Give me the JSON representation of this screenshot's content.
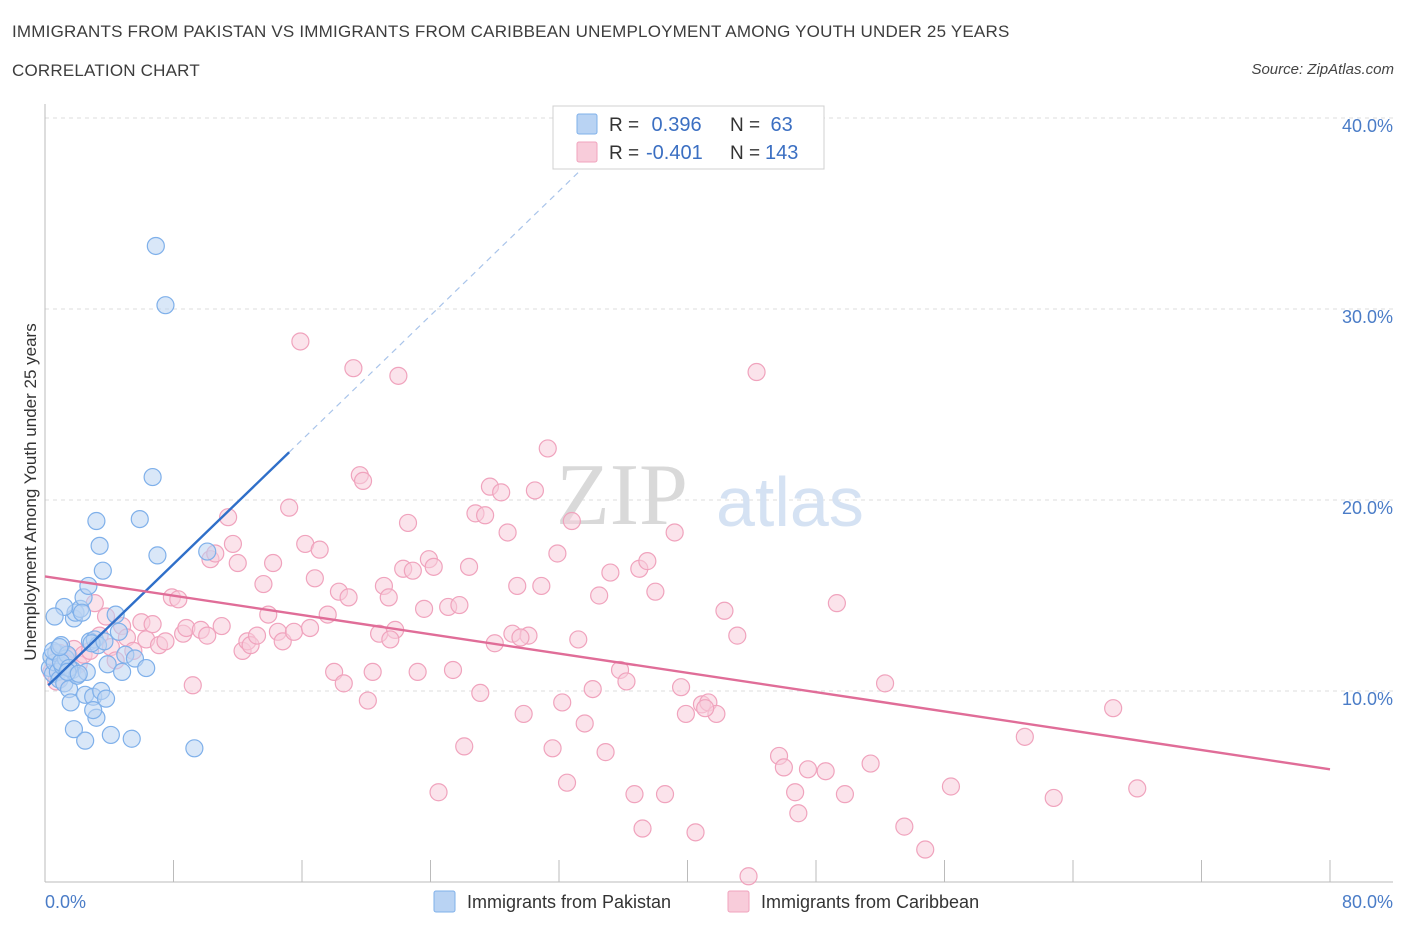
{
  "chart_data": {
    "type": "scatter",
    "title": "IMMIGRANTS FROM PAKISTAN VS IMMIGRANTS FROM CARIBBEAN UNEMPLOYMENT AMONG YOUTH UNDER 25 YEARS",
    "subtitle": "CORRELATION CHART",
    "source": "Source: ZipAtlas.com",
    "xlabel": "",
    "ylabel": "Unemployment Among Youth under 25 years",
    "xlim": [
      0,
      80
    ],
    "ylim": [
      0,
      40
    ],
    "x_tick_labels": [
      "0.0%",
      "80.0%"
    ],
    "y_ticks": [
      {
        "value": 10,
        "label": "10.0%"
      },
      {
        "value": 20,
        "label": "20.0%"
      },
      {
        "value": 30,
        "label": "30.0%"
      },
      {
        "value": 40,
        "label": "40.0%"
      }
    ],
    "watermark": {
      "zip": "ZIP",
      "atlas": "atlas"
    },
    "legend": {
      "rows": [
        {
          "r_label": "R = ",
          "r_value": " 0.396",
          "n_label": "N = ",
          "n_value": " 63"
        },
        {
          "r_label": "R = ",
          "r_value": "-0.401",
          "n_label": "N = ",
          "n_value": "143"
        }
      ]
    },
    "series": [
      {
        "name": "Immigrants from Pakistan",
        "color": "#7fb0ea",
        "fill": "#b9d3f3",
        "trend_color": "#2f6fc9",
        "trend": {
          "x0": 0.2,
          "y0": 10.3,
          "x1": 15.2,
          "y1": 22.5,
          "dash_x1": 34.0,
          "dash_y1": 37.8
        },
        "points": [
          [
            0.3,
            11.2
          ],
          [
            0.4,
            11.8
          ],
          [
            0.5,
            10.9
          ],
          [
            0.6,
            11.5
          ],
          [
            0.7,
            12.0
          ],
          [
            0.5,
            12.1
          ],
          [
            0.8,
            11.0
          ],
          [
            0.9,
            10.6
          ],
          [
            1.0,
            12.4
          ],
          [
            1.1,
            11.3
          ],
          [
            1.2,
            10.4
          ],
          [
            1.3,
            11.7
          ],
          [
            1.4,
            11.9
          ],
          [
            1.5,
            10.1
          ],
          [
            1.6,
            9.4
          ],
          [
            1.7,
            11.1
          ],
          [
            1.8,
            13.8
          ],
          [
            1.9,
            14.1
          ],
          [
            2.0,
            10.8
          ],
          [
            2.2,
            14.3
          ],
          [
            2.4,
            14.9
          ],
          [
            2.5,
            9.8
          ],
          [
            2.6,
            11.0
          ],
          [
            2.7,
            15.5
          ],
          [
            2.8,
            12.6
          ],
          [
            3.0,
            9.7
          ],
          [
            3.1,
            12.7
          ],
          [
            3.2,
            8.6
          ],
          [
            3.3,
            12.4
          ],
          [
            3.4,
            17.6
          ],
          [
            3.5,
            10.0
          ],
          [
            3.6,
            16.3
          ],
          [
            3.8,
            9.6
          ],
          [
            3.9,
            11.4
          ],
          [
            4.1,
            7.7
          ],
          [
            4.4,
            14.0
          ],
          [
            4.6,
            13.1
          ],
          [
            4.8,
            11.0
          ],
          [
            5.0,
            11.9
          ],
          [
            5.4,
            7.5
          ],
          [
            5.6,
            11.7
          ],
          [
            5.9,
            19.0
          ],
          [
            6.3,
            11.2
          ],
          [
            6.7,
            21.2
          ],
          [
            6.9,
            33.3
          ],
          [
            7.0,
            17.1
          ],
          [
            7.5,
            30.2
          ],
          [
            9.3,
            7.0
          ],
          [
            10.1,
            17.3
          ],
          [
            1.2,
            14.4
          ],
          [
            0.6,
            13.9
          ],
          [
            2.3,
            14.1
          ],
          [
            1.0,
            11.5
          ],
          [
            1.5,
            11.2
          ],
          [
            2.9,
            12.5
          ],
          [
            0.9,
            12.3
          ],
          [
            3.7,
            12.6
          ],
          [
            1.8,
            8.0
          ],
          [
            2.5,
            7.4
          ],
          [
            3.0,
            9.0
          ],
          [
            1.4,
            11.0
          ],
          [
            2.1,
            10.9
          ],
          [
            3.2,
            18.9
          ]
        ]
      },
      {
        "name": "Immigrants from Caribbean",
        "color": "#f0a3bd",
        "fill": "#f8ccda",
        "trend_color": "#e06d98",
        "trend": {
          "x0": 0.0,
          "y0": 16.0,
          "x1": 80.0,
          "y1": 5.9
        },
        "points": [
          [
            0.4,
            11.0
          ],
          [
            0.7,
            10.5
          ],
          [
            0.9,
            12.0
          ],
          [
            1.2,
            11.6
          ],
          [
            1.5,
            11.8
          ],
          [
            1.8,
            12.2
          ],
          [
            2.1,
            11.4
          ],
          [
            2.4,
            11.9
          ],
          [
            2.8,
            12.1
          ],
          [
            3.1,
            14.6
          ],
          [
            3.4,
            12.9
          ],
          [
            3.8,
            13.9
          ],
          [
            4.1,
            12.3
          ],
          [
            4.4,
            11.6
          ],
          [
            4.8,
            13.4
          ],
          [
            5.1,
            12.8
          ],
          [
            5.5,
            12.1
          ],
          [
            6.0,
            13.6
          ],
          [
            6.3,
            12.7
          ],
          [
            6.7,
            13.5
          ],
          [
            7.1,
            12.4
          ],
          [
            7.5,
            12.6
          ],
          [
            7.9,
            14.9
          ],
          [
            8.3,
            14.8
          ],
          [
            8.6,
            13.0
          ],
          [
            8.8,
            13.3
          ],
          [
            9.2,
            10.3
          ],
          [
            9.7,
            13.2
          ],
          [
            10.1,
            12.9
          ],
          [
            10.3,
            16.9
          ],
          [
            10.6,
            17.2
          ],
          [
            11.0,
            13.4
          ],
          [
            11.4,
            19.1
          ],
          [
            11.7,
            17.7
          ],
          [
            12.0,
            16.7
          ],
          [
            12.3,
            12.1
          ],
          [
            12.6,
            12.6
          ],
          [
            12.8,
            12.4
          ],
          [
            13.2,
            12.9
          ],
          [
            13.6,
            15.6
          ],
          [
            13.9,
            14.0
          ],
          [
            14.2,
            16.7
          ],
          [
            14.5,
            13.1
          ],
          [
            14.8,
            12.6
          ],
          [
            15.2,
            19.6
          ],
          [
            15.5,
            13.1
          ],
          [
            15.9,
            28.3
          ],
          [
            16.2,
            17.7
          ],
          [
            16.5,
            13.3
          ],
          [
            16.8,
            15.9
          ],
          [
            17.1,
            17.4
          ],
          [
            17.6,
            14.0
          ],
          [
            18.0,
            11.0
          ],
          [
            18.3,
            15.2
          ],
          [
            18.6,
            10.4
          ],
          [
            18.9,
            14.9
          ],
          [
            19.2,
            26.9
          ],
          [
            19.6,
            21.3
          ],
          [
            19.8,
            21.0
          ],
          [
            20.1,
            9.5
          ],
          [
            20.4,
            11.0
          ],
          [
            20.8,
            13.0
          ],
          [
            21.1,
            15.5
          ],
          [
            21.4,
            14.9
          ],
          [
            21.8,
            13.2
          ],
          [
            22.0,
            26.5
          ],
          [
            22.3,
            16.4
          ],
          [
            22.6,
            18.8
          ],
          [
            22.9,
            16.3
          ],
          [
            23.2,
            11.0
          ],
          [
            23.6,
            14.3
          ],
          [
            23.9,
            16.9
          ],
          [
            24.2,
            16.5
          ],
          [
            24.5,
            4.7
          ],
          [
            25.1,
            14.4
          ],
          [
            25.4,
            11.1
          ],
          [
            25.8,
            14.5
          ],
          [
            26.1,
            7.1
          ],
          [
            26.4,
            16.5
          ],
          [
            26.8,
            19.3
          ],
          [
            27.1,
            9.9
          ],
          [
            27.4,
            19.2
          ],
          [
            27.7,
            20.7
          ],
          [
            28.0,
            12.5
          ],
          [
            28.4,
            20.4
          ],
          [
            28.8,
            18.3
          ],
          [
            29.1,
            13.0
          ],
          [
            29.4,
            15.5
          ],
          [
            29.8,
            8.8
          ],
          [
            30.1,
            12.9
          ],
          [
            30.5,
            20.5
          ],
          [
            30.9,
            15.5
          ],
          [
            31.3,
            22.7
          ],
          [
            31.6,
            7.0
          ],
          [
            31.9,
            17.2
          ],
          [
            32.2,
            9.4
          ],
          [
            32.5,
            5.2
          ],
          [
            32.8,
            18.9
          ],
          [
            33.2,
            12.7
          ],
          [
            33.6,
            8.3
          ],
          [
            34.1,
            10.1
          ],
          [
            34.5,
            15.0
          ],
          [
            34.9,
            6.8
          ],
          [
            35.2,
            16.2
          ],
          [
            35.8,
            11.1
          ],
          [
            36.2,
            10.5
          ],
          [
            36.7,
            4.6
          ],
          [
            37.0,
            16.4
          ],
          [
            37.2,
            2.8
          ],
          [
            37.5,
            16.8
          ],
          [
            38.0,
            15.2
          ],
          [
            38.6,
            4.6
          ],
          [
            39.2,
            18.3
          ],
          [
            39.6,
            10.2
          ],
          [
            39.9,
            8.8
          ],
          [
            40.5,
            2.6
          ],
          [
            40.9,
            9.3
          ],
          [
            41.3,
            9.4
          ],
          [
            41.8,
            8.8
          ],
          [
            42.3,
            14.2
          ],
          [
            43.1,
            12.9
          ],
          [
            43.8,
            0.3
          ],
          [
            44.3,
            26.7
          ],
          [
            45.7,
            6.6
          ],
          [
            46.0,
            6.0
          ],
          [
            46.7,
            4.7
          ],
          [
            46.9,
            3.6
          ],
          [
            47.5,
            5.9
          ],
          [
            48.6,
            5.8
          ],
          [
            49.3,
            14.6
          ],
          [
            49.8,
            4.6
          ],
          [
            51.4,
            6.2
          ],
          [
            52.3,
            10.4
          ],
          [
            53.5,
            2.9
          ],
          [
            54.8,
            1.7
          ],
          [
            56.4,
            5.0
          ],
          [
            61.0,
            7.6
          ],
          [
            62.8,
            4.4
          ],
          [
            66.5,
            9.1
          ],
          [
            68.0,
            4.9
          ],
          [
            41.1,
            9.1
          ],
          [
            29.6,
            12.8
          ],
          [
            21.5,
            12.7
          ]
        ]
      }
    ]
  }
}
